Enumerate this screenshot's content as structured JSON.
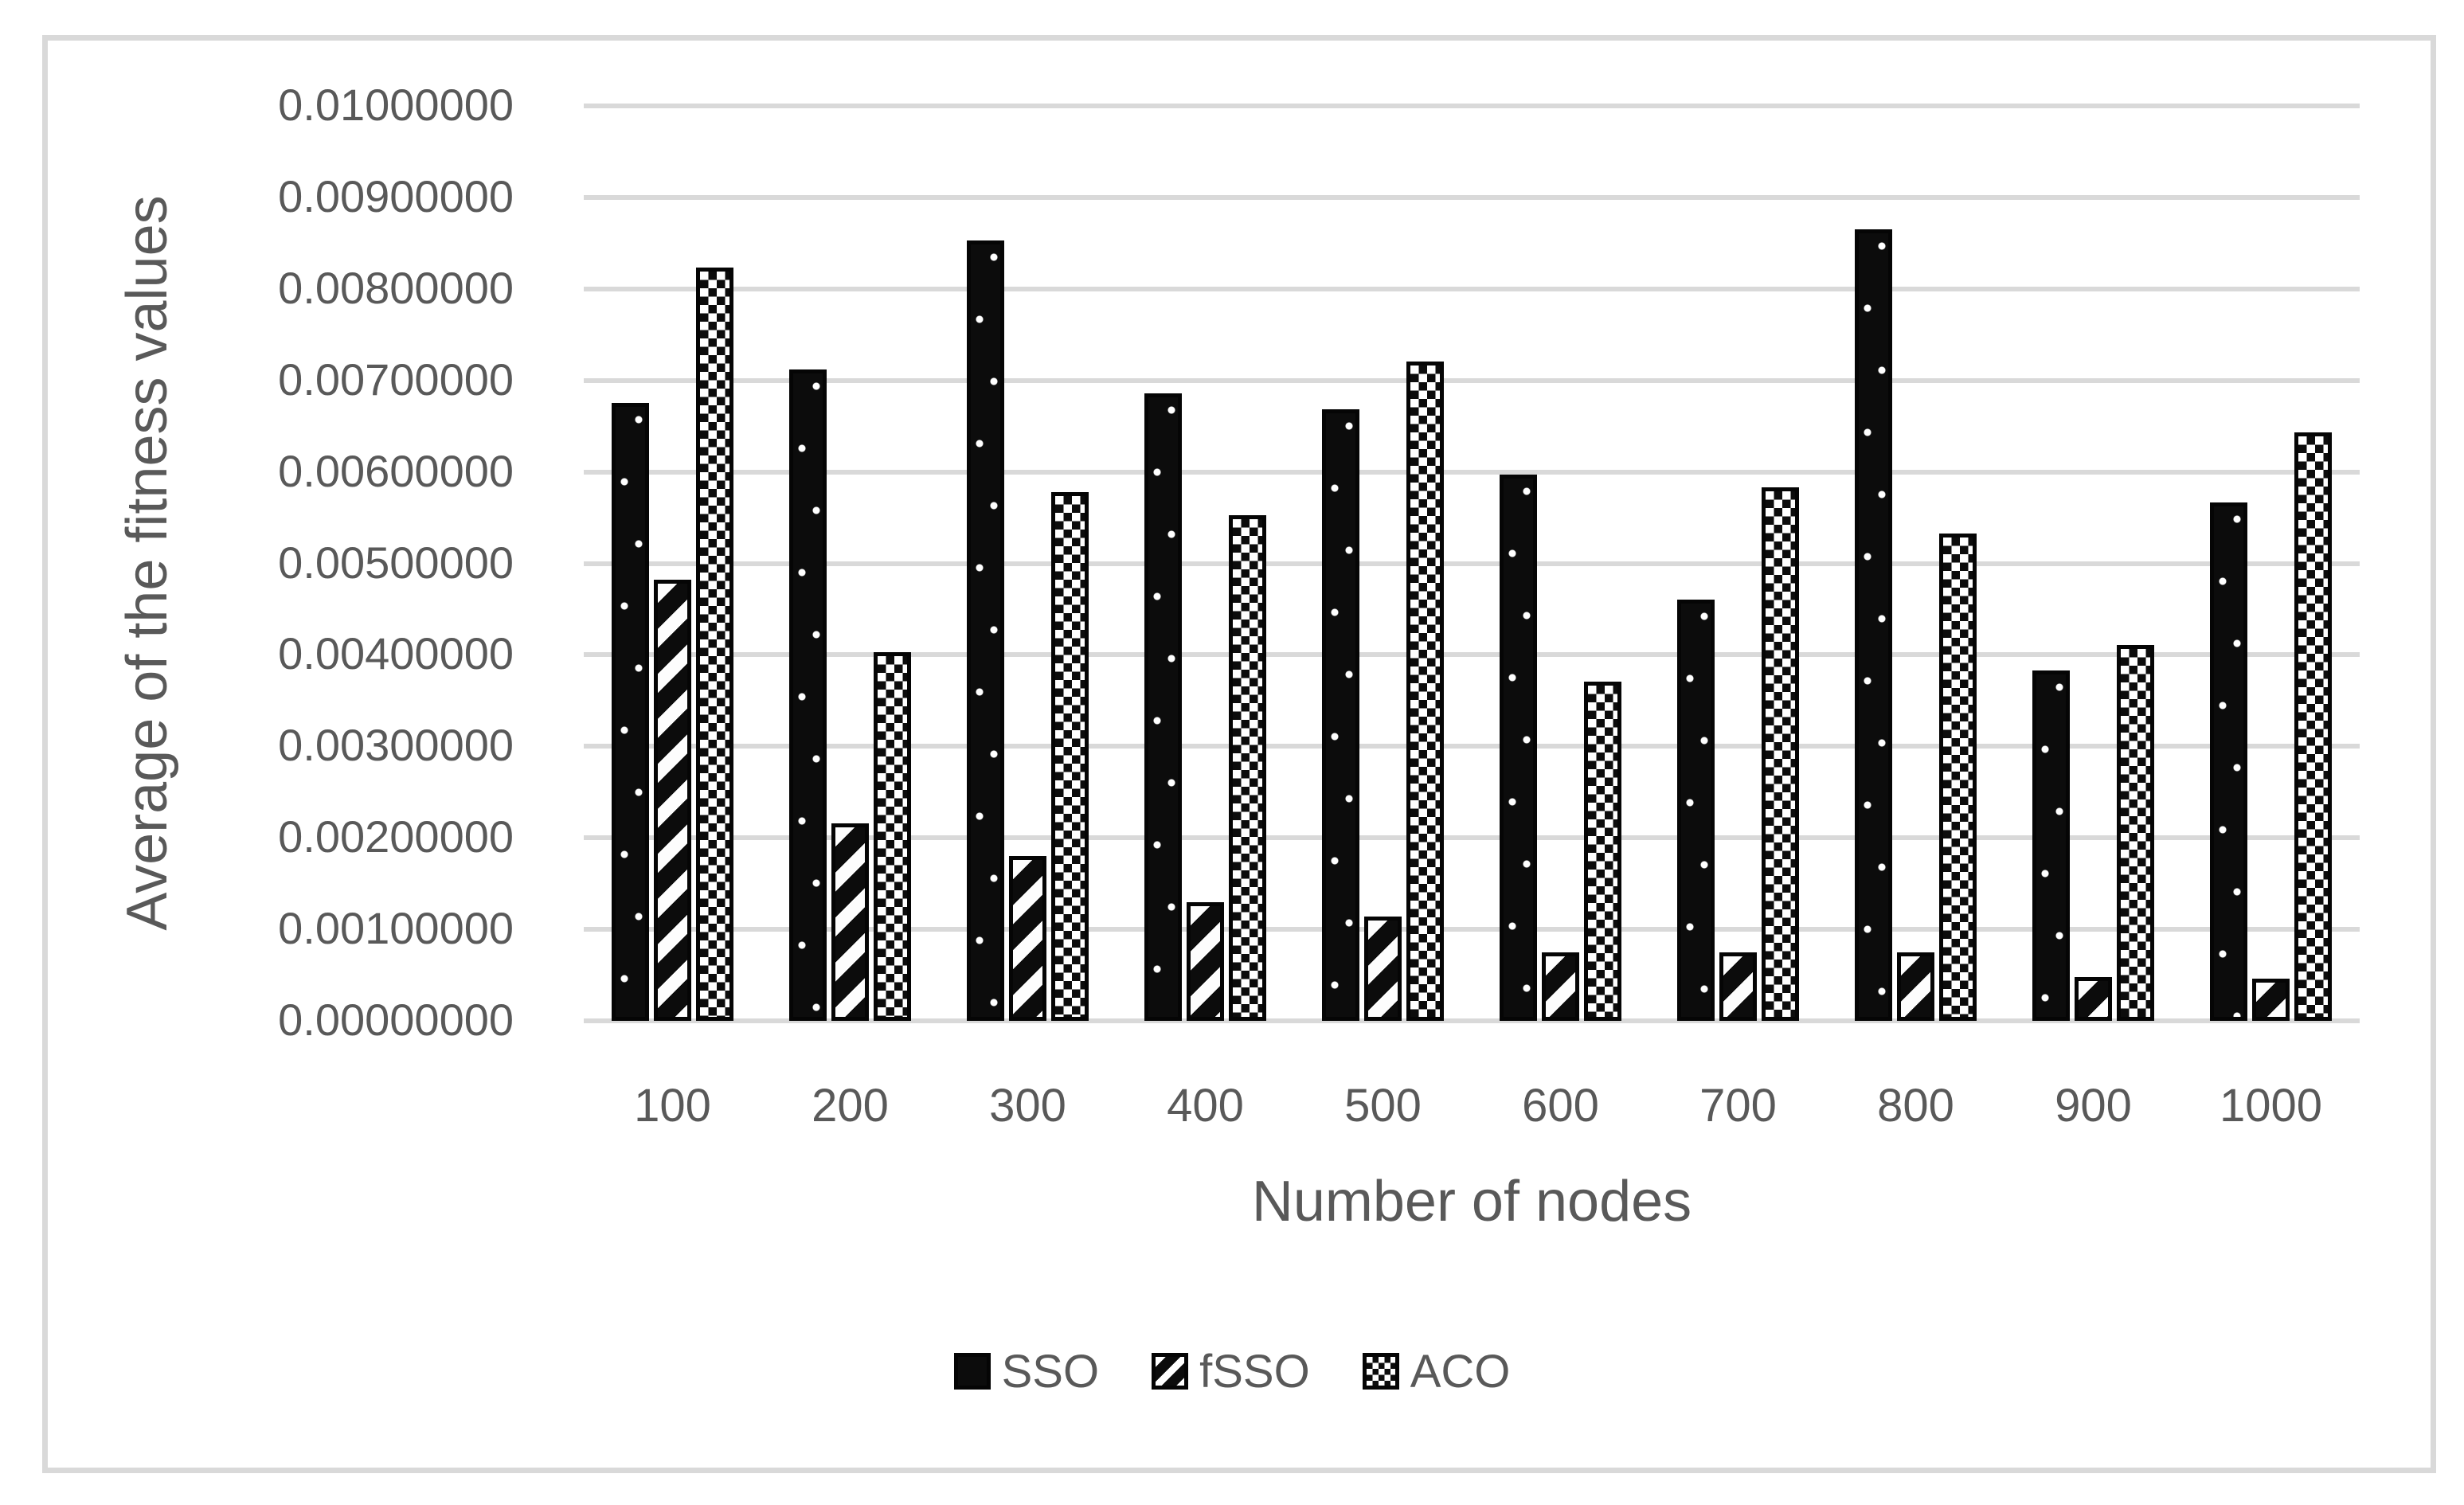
{
  "page": {
    "background": "#ffffff"
  },
  "colors": {
    "bar_black": "#0c0c0c",
    "text_gray": "#595959",
    "grid_gray": "#d9d9d9",
    "frame_border": "#d9d9d9"
  },
  "chart_data": {
    "type": "bar",
    "title": "",
    "xlabel": "Number of nodes",
    "ylabel": "Average of the fitness values",
    "categories": [
      "100",
      "200",
      "300",
      "400",
      "500",
      "600",
      "700",
      "800",
      "900",
      "1000"
    ],
    "series": [
      {
        "name": "SSO",
        "pattern": "white-dots-on-black",
        "values": [
          0.00675,
          0.00712,
          0.00853,
          0.00686,
          0.00668,
          0.00597,
          0.0046,
          0.00865,
          0.00383,
          0.00567
        ]
      },
      {
        "name": "fSSO",
        "pattern": "diagonal-stripes",
        "values": [
          0.00482,
          0.00216,
          0.0018,
          0.0013,
          0.00114,
          0.00075,
          0.00075,
          0.00075,
          0.00048,
          0.00046
        ]
      },
      {
        "name": "ACO",
        "pattern": "checkerboard",
        "values": [
          0.00823,
          0.00403,
          0.00578,
          0.00553,
          0.00721,
          0.00371,
          0.00583,
          0.00533,
          0.00411,
          0.00643
        ]
      }
    ],
    "ylim": [
      0,
      0.01
    ],
    "ytick_step": 0.001,
    "ytick_labels": [
      "0.01000000",
      "0.00900000",
      "0.00800000",
      "0.00700000",
      "0.00600000",
      "0.00500000",
      "0.00400000",
      "0.00300000",
      "0.00200000",
      "0.00100000",
      "0.00000000"
    ],
    "grid": true,
    "legend_position": "bottom",
    "legend_labels": [
      "SSO",
      "fSSO",
      "ACO"
    ]
  }
}
